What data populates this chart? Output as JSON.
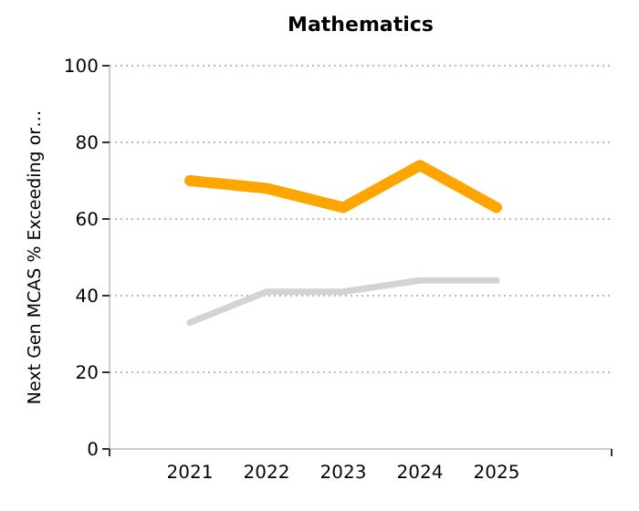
{
  "chart_data": {
    "type": "line",
    "title": "Mathematics",
    "ylabel": "Next Gen MCAS % Exceeding or…",
    "categories": [
      "2021",
      "2022",
      "2023",
      "2024",
      "2025"
    ],
    "series": [
      {
        "color": "#ffa500",
        "values": [
          70,
          68,
          63,
          74,
          63
        ]
      },
      {
        "color": "#d3d3d3",
        "values": [
          33,
          41,
          41,
          44,
          44
        ]
      }
    ],
    "ylim": [
      0,
      100
    ],
    "yticks": [
      0,
      20,
      40,
      60,
      80,
      100
    ],
    "grid": "y",
    "marker": "none",
    "line_style": "solid"
  }
}
